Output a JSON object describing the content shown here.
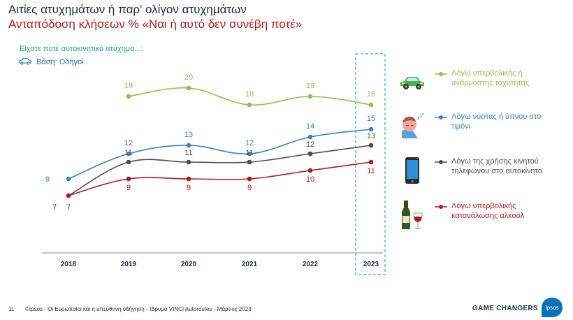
{
  "header": {
    "title_line1": "Αιτίες ατυχημάτων ή παρ' ολίγον ατυχημάτων",
    "title_line2": "Ανταπόδοση κλήσεων % «Ναι ή αυτό δεν συνέβη ποτέ»",
    "question": "Είχατε ποτέ αυτοκινητικό ατύχημα...;",
    "base": "Βάση: Οδηγοί"
  },
  "footer": {
    "page_number": "11",
    "source": "©Ipsos - Οι Ευρωπαίοι και η υπεύθυνη οδήγηση - Ίδρυμα VINCI Autoroutes - Μάρτιος  2023",
    "tagline": "GAME CHANGERS",
    "logo_text": "Ipsos"
  },
  "colors": {
    "green": "#8cc152",
    "blue": "#3b7fc4",
    "gray": "#4d4d4d",
    "red": "#b01a1a",
    "highlight": "#2ab0b8"
  },
  "chart_data": {
    "type": "line",
    "title": "Αιτίες ατυχημάτων ή παρ' ολίγον ατυχημάτων",
    "x": [
      "2018",
      "2019",
      "2020",
      "2021",
      "2022",
      "2023"
    ],
    "ylim": [
      0,
      25
    ],
    "highlight_category": "2023",
    "series": [
      {
        "name": "Λόγω υπερβολικής ή ανάρμοστης ταχύτητας",
        "color": "#8cc152",
        "icon": "car-icon",
        "values": [
          null,
          19,
          20,
          18,
          19,
          18
        ]
      },
      {
        "name": "Λόγω νύστας ή ύπνου στο τιμόνι",
        "color": "#3b7fc4",
        "icon": "sleepy-face-icon",
        "values": [
          9,
          12,
          13,
          12,
          14,
          15
        ]
      },
      {
        "name": "Λόγω της χρήσης κινητού τηλεφώνου στο αυτοκίνητο",
        "color": "#4d4d4d",
        "icon": "mobile-phone-icon",
        "values": [
          7,
          11,
          11,
          11,
          12,
          13
        ]
      },
      {
        "name": "Λόγω υπερβολικής κατανάλωσης αλκοόλ",
        "color": "#b01a1a",
        "icon": "wine-icon",
        "values": [
          7,
          9,
          9,
          9,
          10,
          11
        ]
      }
    ]
  }
}
